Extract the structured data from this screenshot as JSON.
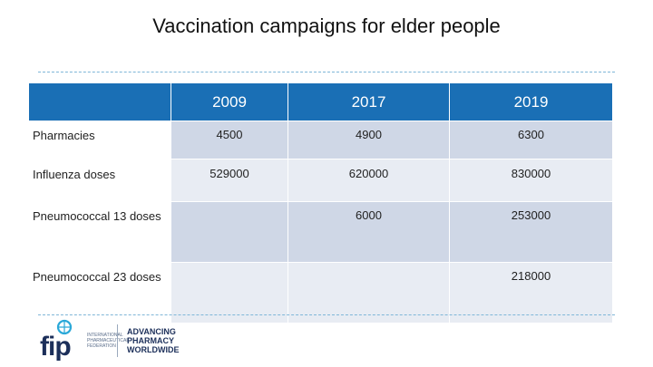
{
  "title": "Vaccination campaigns for elder people",
  "table": {
    "header": [
      "",
      "2009",
      "2017",
      "2019"
    ],
    "rows": [
      {
        "label": "Pharmacies",
        "values": [
          "4500",
          "4900",
          "6300"
        ]
      },
      {
        "label": "Influenza doses",
        "values": [
          "529000",
          "620000",
          "830000"
        ]
      },
      {
        "label": "Pneumococcal 13 doses",
        "values": [
          "",
          "6000",
          "253000"
        ]
      },
      {
        "label": "Pneumococcal 23 doses",
        "values": [
          "",
          "",
          "218000"
        ]
      }
    ]
  },
  "logo": {
    "brand": "fip",
    "org_lines": [
      "INTERNATIONAL",
      "PHARMACEUTICAL",
      "FEDERATION"
    ],
    "tagline_lines": [
      "ADVANCING",
      "PHARMACY",
      "WORLDWIDE"
    ],
    "colors": {
      "navy": "#1c2f5a",
      "accent": "#2aa8d8"
    }
  },
  "colors": {
    "header_bg": "#1a6fb5",
    "row_dark": "#cfd7e6",
    "row_light": "#e8ecf3",
    "dash": "#7fb6d8"
  }
}
